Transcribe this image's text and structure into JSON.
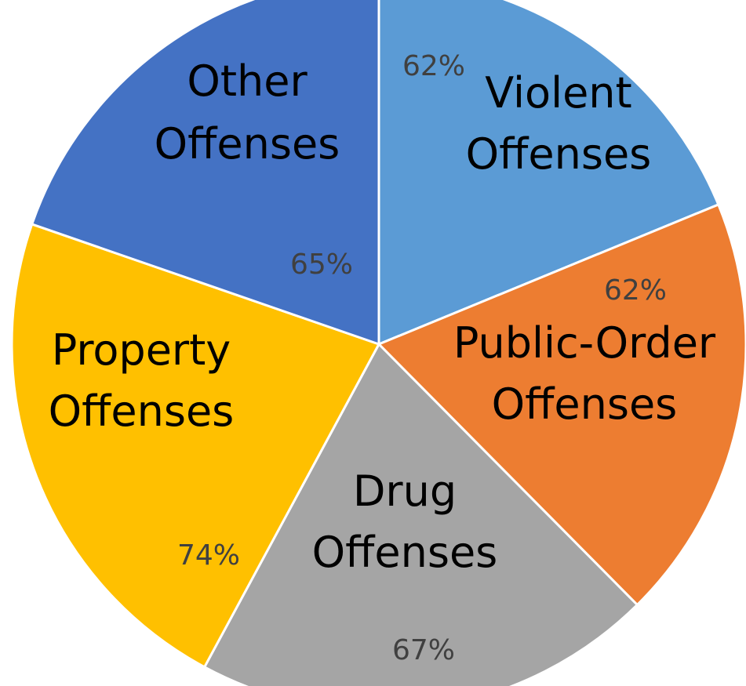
{
  "chart_data": {
    "type": "pie",
    "start_angle_deg": 0,
    "direction": "clockwise",
    "slices": [
      {
        "name": "Violent",
        "label_lines": [
          "Violent",
          "Offenses"
        ],
        "value": 62,
        "value_label": "62%",
        "color": "#5B9BD5"
      },
      {
        "name": "Public-Order",
        "label_lines": [
          "Public-Order",
          "Offenses"
        ],
        "value": 62,
        "value_label": "62%",
        "color": "#ED7D31"
      },
      {
        "name": "Drug",
        "label_lines": [
          "Drug",
          "Offenses"
        ],
        "value": 67,
        "value_label": "67%",
        "color": "#A5A5A5"
      },
      {
        "name": "Property",
        "label_lines": [
          "Property",
          "Offenses"
        ],
        "value": 74,
        "value_label": "74%",
        "color": "#FFC000"
      },
      {
        "name": "Other",
        "label_lines": [
          "Other",
          "Offenses"
        ],
        "value": 65,
        "value_label": "65%",
        "color": "#4472C4"
      }
    ]
  }
}
